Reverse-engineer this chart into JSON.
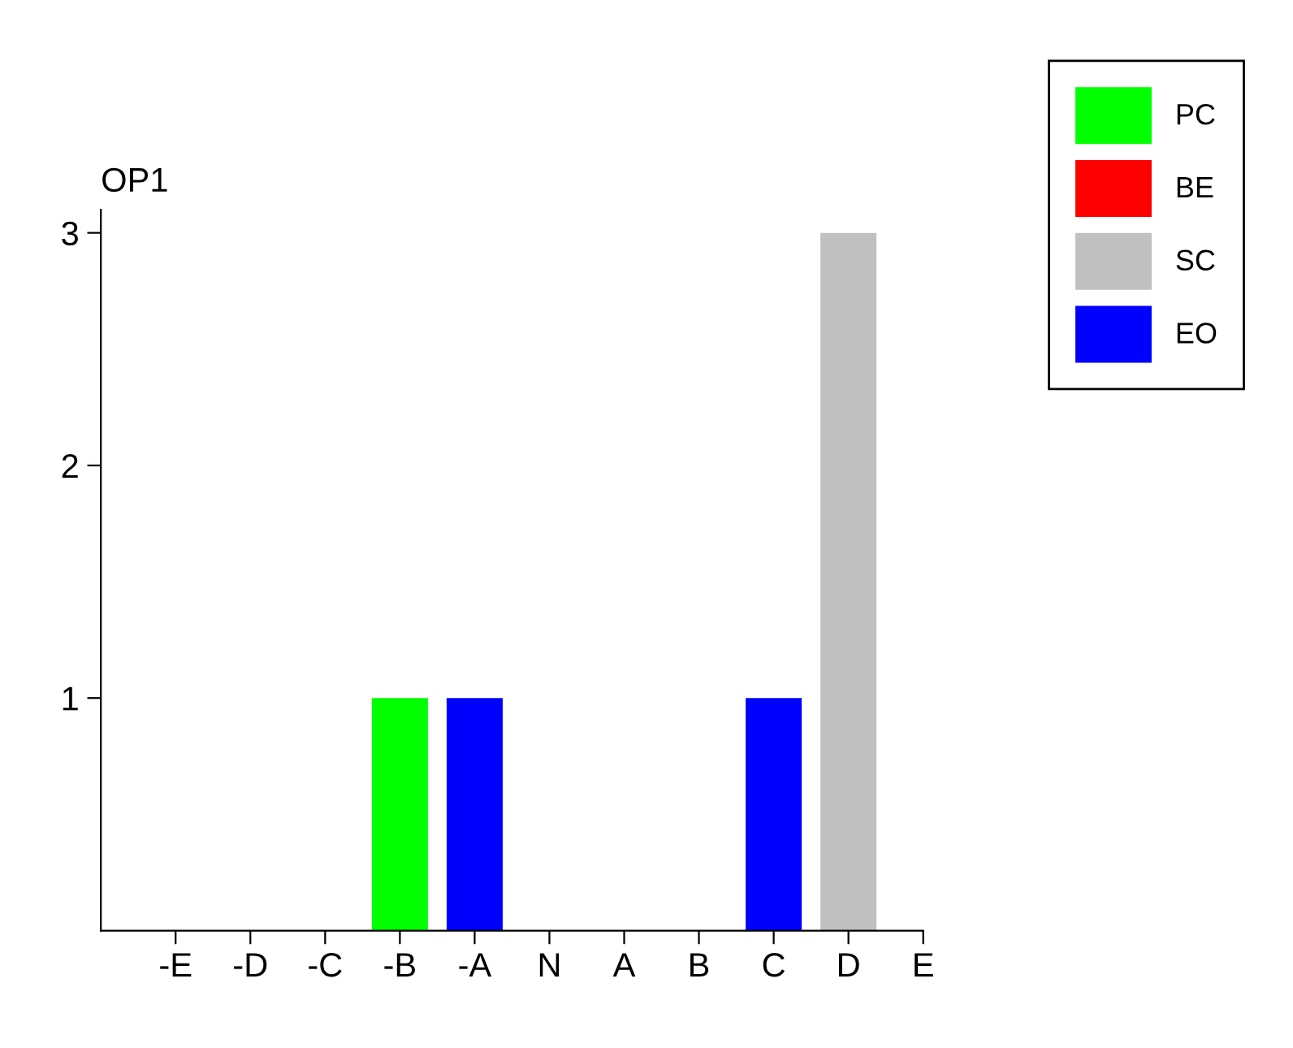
{
  "chart_data": {
    "type": "bar",
    "title": "OP1",
    "stacked": true,
    "categories": [
      "-E",
      "-D",
      "-C",
      "-B",
      "-A",
      "N",
      "A",
      "B",
      "C",
      "D",
      "E"
    ],
    "series": [
      {
        "name": "PC",
        "color": "#00ff00",
        "values": [
          0,
          0,
          0,
          1,
          0,
          0,
          0,
          0,
          0,
          0,
          0
        ]
      },
      {
        "name": "BE",
        "color": "#ff0000",
        "values": [
          0,
          0,
          0,
          0,
          0,
          0,
          0,
          0,
          0,
          0,
          0
        ]
      },
      {
        "name": "SC",
        "color": "#c0c0c0",
        "values": [
          0,
          0,
          0,
          0,
          0,
          0,
          0,
          0,
          0,
          3,
          0
        ]
      },
      {
        "name": "EO",
        "color": "#0000ff",
        "values": [
          0,
          0,
          0,
          0,
          1,
          0,
          0,
          0,
          1,
          0,
          0
        ]
      }
    ],
    "ylim": [
      0,
      3.1
    ],
    "yticks": [
      1,
      2,
      3
    ],
    "grid": false,
    "legend": "top right"
  }
}
